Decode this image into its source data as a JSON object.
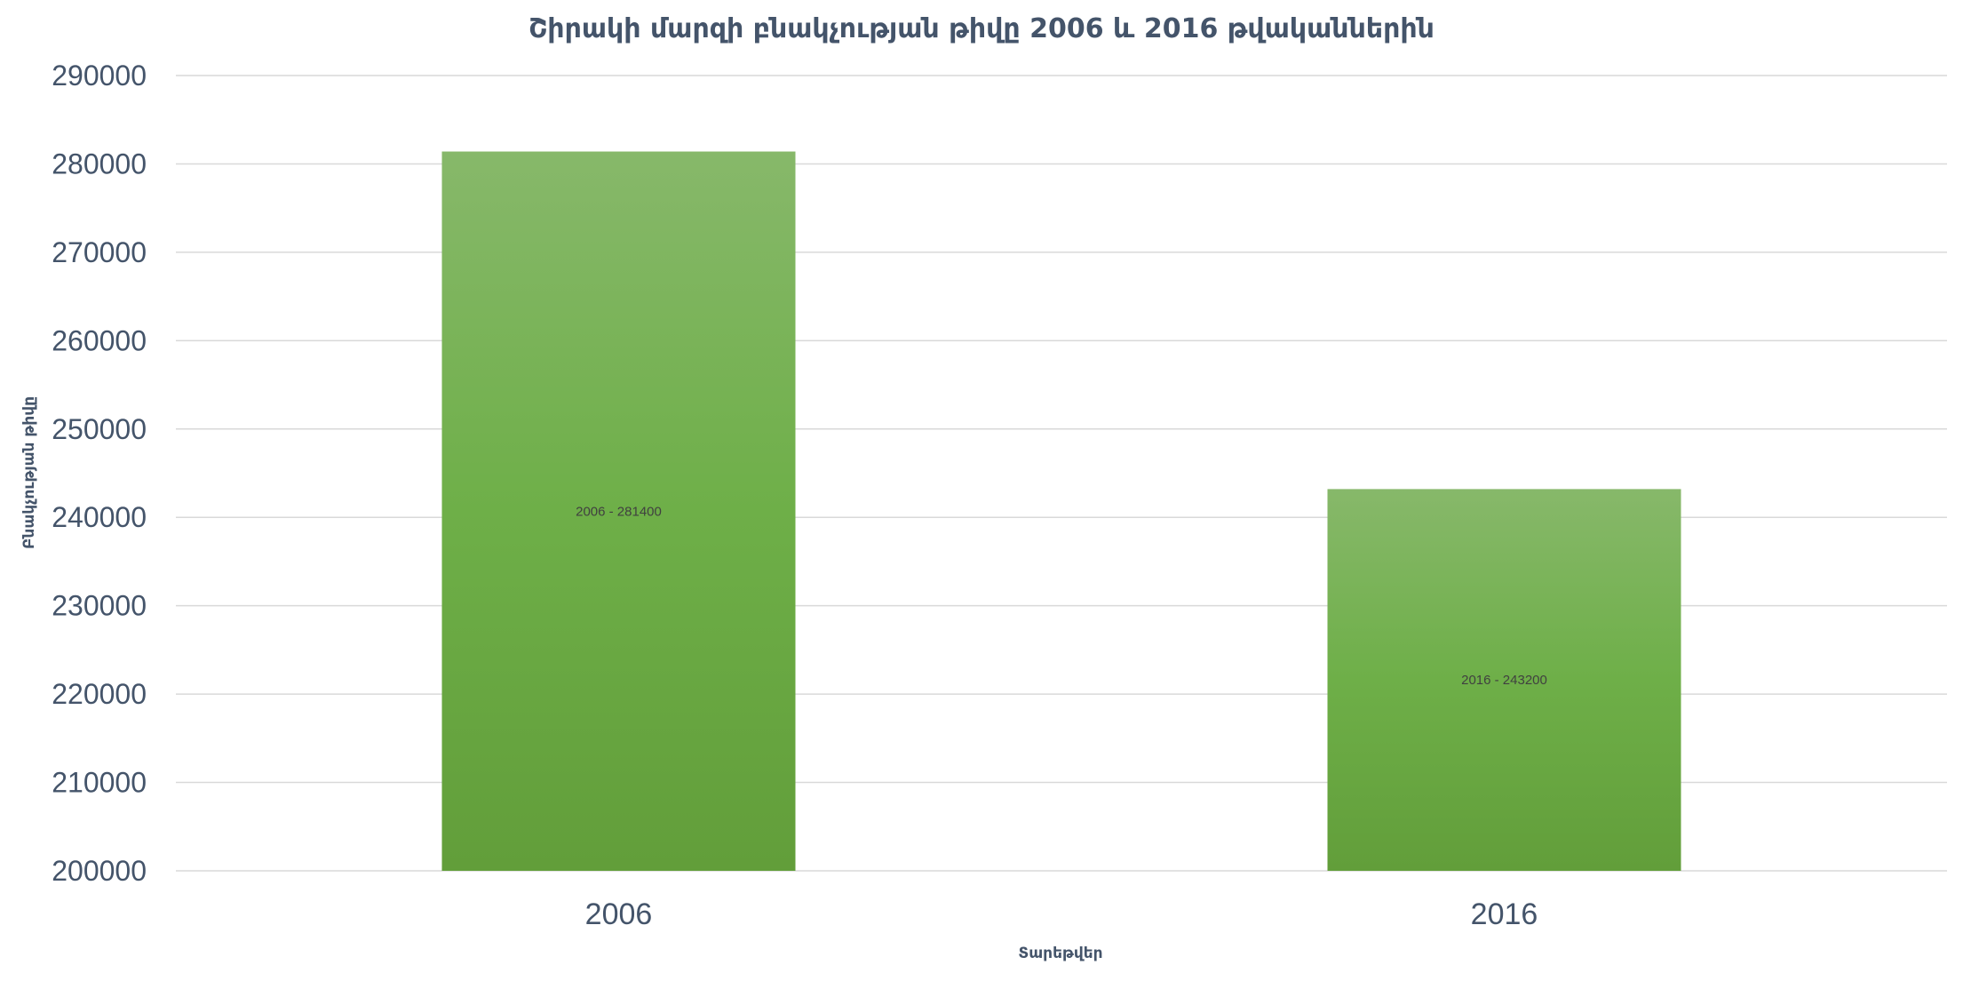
{
  "chart_data": {
    "type": "bar",
    "title": "Շիրակի մարզի բնակչության թիվը  2006 և 2016 թվականներին",
    "xlabel": "Տարեթվեր",
    "ylabel": "Բնակչության  թիվը",
    "categories": [
      "2006",
      "2016"
    ],
    "values": [
      281400,
      243200
    ],
    "data_labels": [
      "2006 - 281400",
      "2016 - 243200"
    ],
    "ylim": [
      200000,
      290000
    ],
    "yticks": [
      "200000",
      "210000",
      "220000",
      "230000",
      "240000",
      "250000",
      "260000",
      "270000",
      "280000",
      "290000"
    ],
    "grid": true,
    "legend": "none",
    "colors": {
      "bar_top": "#87b86a",
      "bar_mid": "#6eaf48",
      "bar_bottom": "#629e3a",
      "text": "#44546a",
      "grid": "#d9d9d9"
    }
  }
}
